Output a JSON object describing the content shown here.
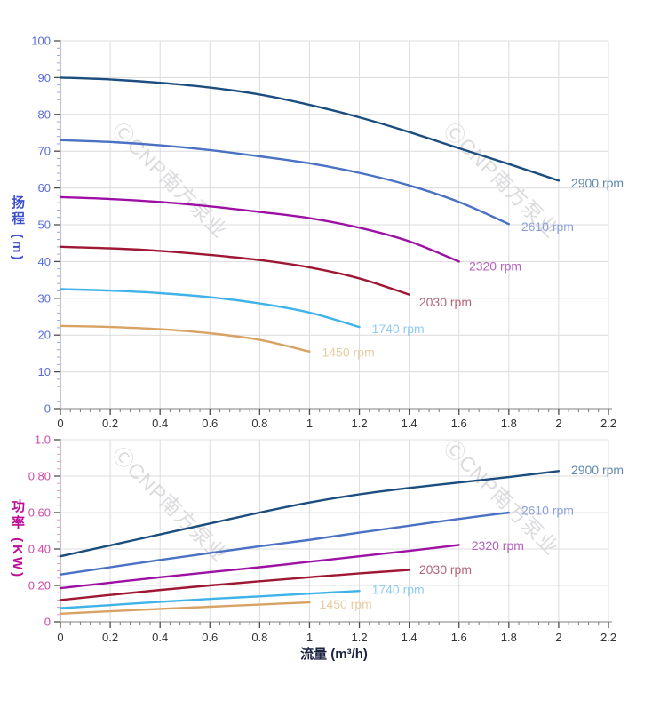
{
  "page": {
    "background": "#ffffff"
  },
  "style": {
    "grid_color": "#dcdcdc",
    "spine_color": "#9a9a9a",
    "major_tick_color": "#4d4d4d",
    "minor_x_tick_color": "#7a7a7a"
  },
  "watermark": {
    "logo_glyph": "Ⓒ",
    "text": "CNP南方泵业",
    "color": "#d3d1d5"
  },
  "chart_data": [
    {
      "id": "head",
      "type": "line",
      "title": "",
      "xlabel": "",
      "ylabel": "扬程 (m)",
      "ylabel_color": "#3c4fd0",
      "xlim": [
        0,
        2.2
      ],
      "ylim": [
        0,
        100
      ],
      "grid": true,
      "legend_position": "curve-end-labels",
      "x_ticks": {
        "values": [
          0,
          0.2,
          0.4,
          0.6,
          0.8,
          1,
          1.2,
          1.4,
          1.6,
          1.8,
          2,
          2.2
        ],
        "labels": [
          "0",
          "0.2",
          "0.4",
          "0.6",
          "0.8",
          "1",
          "1.2",
          "1.4",
          "1.6",
          "1.8",
          "2",
          "2.2"
        ],
        "minor_step": 0.04,
        "label_color": "#333333"
      },
      "y_ticks": {
        "values": [
          0,
          10,
          20,
          30,
          40,
          50,
          60,
          70,
          80,
          90,
          100
        ],
        "labels": [
          "0",
          "10",
          "20",
          "30",
          "40",
          "50",
          "60",
          "70",
          "80",
          "90",
          "100"
        ],
        "minor_step": 2,
        "label_color": "#5b6cdb",
        "minor_tick_color": "#98a5ec"
      },
      "series": [
        {
          "name": "2900 rpm",
          "color": "#1b4e7f",
          "label_color": "#6089b0",
          "label_at": [
            2.05,
            61.3
          ],
          "points": [
            [
              0,
              90
            ],
            [
              0.2,
              89.5
            ],
            [
              0.4,
              88.6
            ],
            [
              0.6,
              87.3
            ],
            [
              0.8,
              85.4
            ],
            [
              1,
              82.6
            ],
            [
              1.2,
              79.2
            ],
            [
              1.4,
              75.2
            ],
            [
              1.6,
              70.8
            ],
            [
              1.8,
              66.5
            ],
            [
              2,
              62
            ]
          ]
        },
        {
          "name": "2610 rpm",
          "color": "#4a71c4",
          "label_color": "#8c9fdd",
          "label_at": [
            1.85,
            49.5
          ],
          "points": [
            [
              0,
              73
            ],
            [
              0.2,
              72.5
            ],
            [
              0.4,
              71.6
            ],
            [
              0.6,
              70.3
            ],
            [
              0.8,
              68.6
            ],
            [
              1,
              66.7
            ],
            [
              1.2,
              64.1
            ],
            [
              1.4,
              60.7
            ],
            [
              1.6,
              56.2
            ],
            [
              1.8,
              50.2
            ]
          ]
        },
        {
          "name": "2320 rpm",
          "color": "#9c10a4",
          "label_color": "#b562bd",
          "label_at": [
            1.64,
            38.8
          ],
          "points": [
            [
              0,
              57.5
            ],
            [
              0.2,
              57
            ],
            [
              0.4,
              56.2
            ],
            [
              0.6,
              55
            ],
            [
              0.8,
              53.5
            ],
            [
              1,
              51.8
            ],
            [
              1.2,
              49.2
            ],
            [
              1.4,
              45.5
            ],
            [
              1.6,
              40
            ]
          ]
        },
        {
          "name": "2030 rpm",
          "color": "#9e1733",
          "label_color": "#b26579",
          "label_at": [
            1.44,
            29
          ],
          "points": [
            [
              0,
              44
            ],
            [
              0.2,
              43.6
            ],
            [
              0.4,
              42.9
            ],
            [
              0.6,
              41.8
            ],
            [
              0.8,
              40.4
            ],
            [
              1,
              38.4
            ],
            [
              1.2,
              35.4
            ],
            [
              1.4,
              31
            ]
          ]
        },
        {
          "name": "1740 rpm",
          "color": "#3fb3e8",
          "label_color": "#8fccf0",
          "label_at": [
            1.25,
            21.7
          ],
          "points": [
            [
              0,
              32.5
            ],
            [
              0.2,
              32.1
            ],
            [
              0.4,
              31.4
            ],
            [
              0.6,
              30.3
            ],
            [
              0.8,
              28.6
            ],
            [
              1,
              26.1
            ],
            [
              1.2,
              22.2
            ]
          ]
        },
        {
          "name": "1450 rpm",
          "color": "#d8a264",
          "label_color": "#e9cba2",
          "label_at": [
            1.05,
            15.3
          ],
          "points": [
            [
              0,
              22.5
            ],
            [
              0.2,
              22.2
            ],
            [
              0.4,
              21.6
            ],
            [
              0.6,
              20.5
            ],
            [
              0.8,
              18.7
            ],
            [
              1,
              15.5
            ]
          ]
        }
      ]
    },
    {
      "id": "power",
      "type": "line",
      "title": "",
      "xlabel": "流量 (m³/h)",
      "xlabel_color": "#1c2540",
      "ylabel": "功率 (KW)",
      "ylabel_color": "#bb0d95",
      "xlim": [
        0,
        2.2
      ],
      "ylim": [
        0,
        1
      ],
      "grid": true,
      "legend_position": "curve-end-labels",
      "x_ticks": {
        "values": [
          0,
          0.2,
          0.4,
          0.6,
          0.8,
          1,
          1.2,
          1.4,
          1.6,
          1.8,
          2,
          2.2
        ],
        "labels": [
          "0",
          "0.2",
          "0.4",
          "0.6",
          "0.8",
          "1",
          "1.2",
          "1.4",
          "1.6",
          "1.8",
          "2",
          "2.2"
        ],
        "minor_step": 0.04,
        "label_color": "#333333"
      },
      "y_ticks": {
        "values": [
          0,
          0.2,
          0.4,
          0.6,
          0.8,
          1
        ],
        "labels": [
          "0",
          "0.20",
          "0.40",
          "0.60",
          "0.80",
          "1.0"
        ],
        "minor_step": 0.04,
        "label_color": "#d04aa6",
        "minor_tick_color": "#ec92d1"
      },
      "series": [
        {
          "name": "2900 rpm",
          "color": "#1b4e7f",
          "label_color": "#6089b0",
          "label_at": [
            2.05,
            0.835
          ],
          "points": [
            [
              0,
              0.36
            ],
            [
              0.2,
              0.42
            ],
            [
              0.4,
              0.48
            ],
            [
              0.6,
              0.54
            ],
            [
              0.8,
              0.6
            ],
            [
              1,
              0.655
            ],
            [
              1.2,
              0.7
            ],
            [
              1.4,
              0.735
            ],
            [
              1.6,
              0.765
            ],
            [
              1.8,
              0.795
            ],
            [
              2,
              0.828
            ]
          ]
        },
        {
          "name": "2610 rpm",
          "color": "#4a71c4",
          "label_color": "#8c9fdd",
          "label_at": [
            1.85,
            0.612
          ],
          "points": [
            [
              0,
              0.26
            ],
            [
              0.2,
              0.3
            ],
            [
              0.4,
              0.34
            ],
            [
              0.6,
              0.378
            ],
            [
              0.8,
              0.415
            ],
            [
              1,
              0.45
            ],
            [
              1.2,
              0.49
            ],
            [
              1.4,
              0.528
            ],
            [
              1.6,
              0.565
            ],
            [
              1.8,
              0.6
            ]
          ]
        },
        {
          "name": "2320 rpm",
          "color": "#9c10a4",
          "label_color": "#b562bd",
          "label_at": [
            1.65,
            0.42
          ],
          "points": [
            [
              0,
              0.185
            ],
            [
              0.2,
              0.215
            ],
            [
              0.4,
              0.245
            ],
            [
              0.6,
              0.273
            ],
            [
              0.8,
              0.3
            ],
            [
              1,
              0.33
            ],
            [
              1.2,
              0.36
            ],
            [
              1.4,
              0.39
            ],
            [
              1.6,
              0.422
            ]
          ]
        },
        {
          "name": "2030 rpm",
          "color": "#9e1733",
          "label_color": "#b26579",
          "label_at": [
            1.44,
            0.288
          ],
          "points": [
            [
              0,
              0.12
            ],
            [
              0.2,
              0.148
            ],
            [
              0.4,
              0.175
            ],
            [
              0.6,
              0.2
            ],
            [
              0.8,
              0.223
            ],
            [
              1,
              0.245
            ],
            [
              1.2,
              0.266
            ],
            [
              1.4,
              0.285
            ]
          ]
        },
        {
          "name": "1740 rpm",
          "color": "#3fb3e8",
          "label_color": "#8fccf0",
          "label_at": [
            1.25,
            0.178
          ],
          "points": [
            [
              0,
              0.075
            ],
            [
              0.2,
              0.092
            ],
            [
              0.4,
              0.11
            ],
            [
              0.6,
              0.126
            ],
            [
              0.8,
              0.14
            ],
            [
              1,
              0.155
            ],
            [
              1.2,
              0.17
            ]
          ]
        },
        {
          "name": "1450 rpm",
          "color": "#d8a264",
          "label_color": "#e9cba2",
          "label_at": [
            1.04,
            0.098
          ],
          "points": [
            [
              0,
              0.045
            ],
            [
              0.2,
              0.058
            ],
            [
              0.4,
              0.071
            ],
            [
              0.6,
              0.083
            ],
            [
              0.8,
              0.095
            ],
            [
              1,
              0.107
            ]
          ]
        }
      ]
    }
  ]
}
